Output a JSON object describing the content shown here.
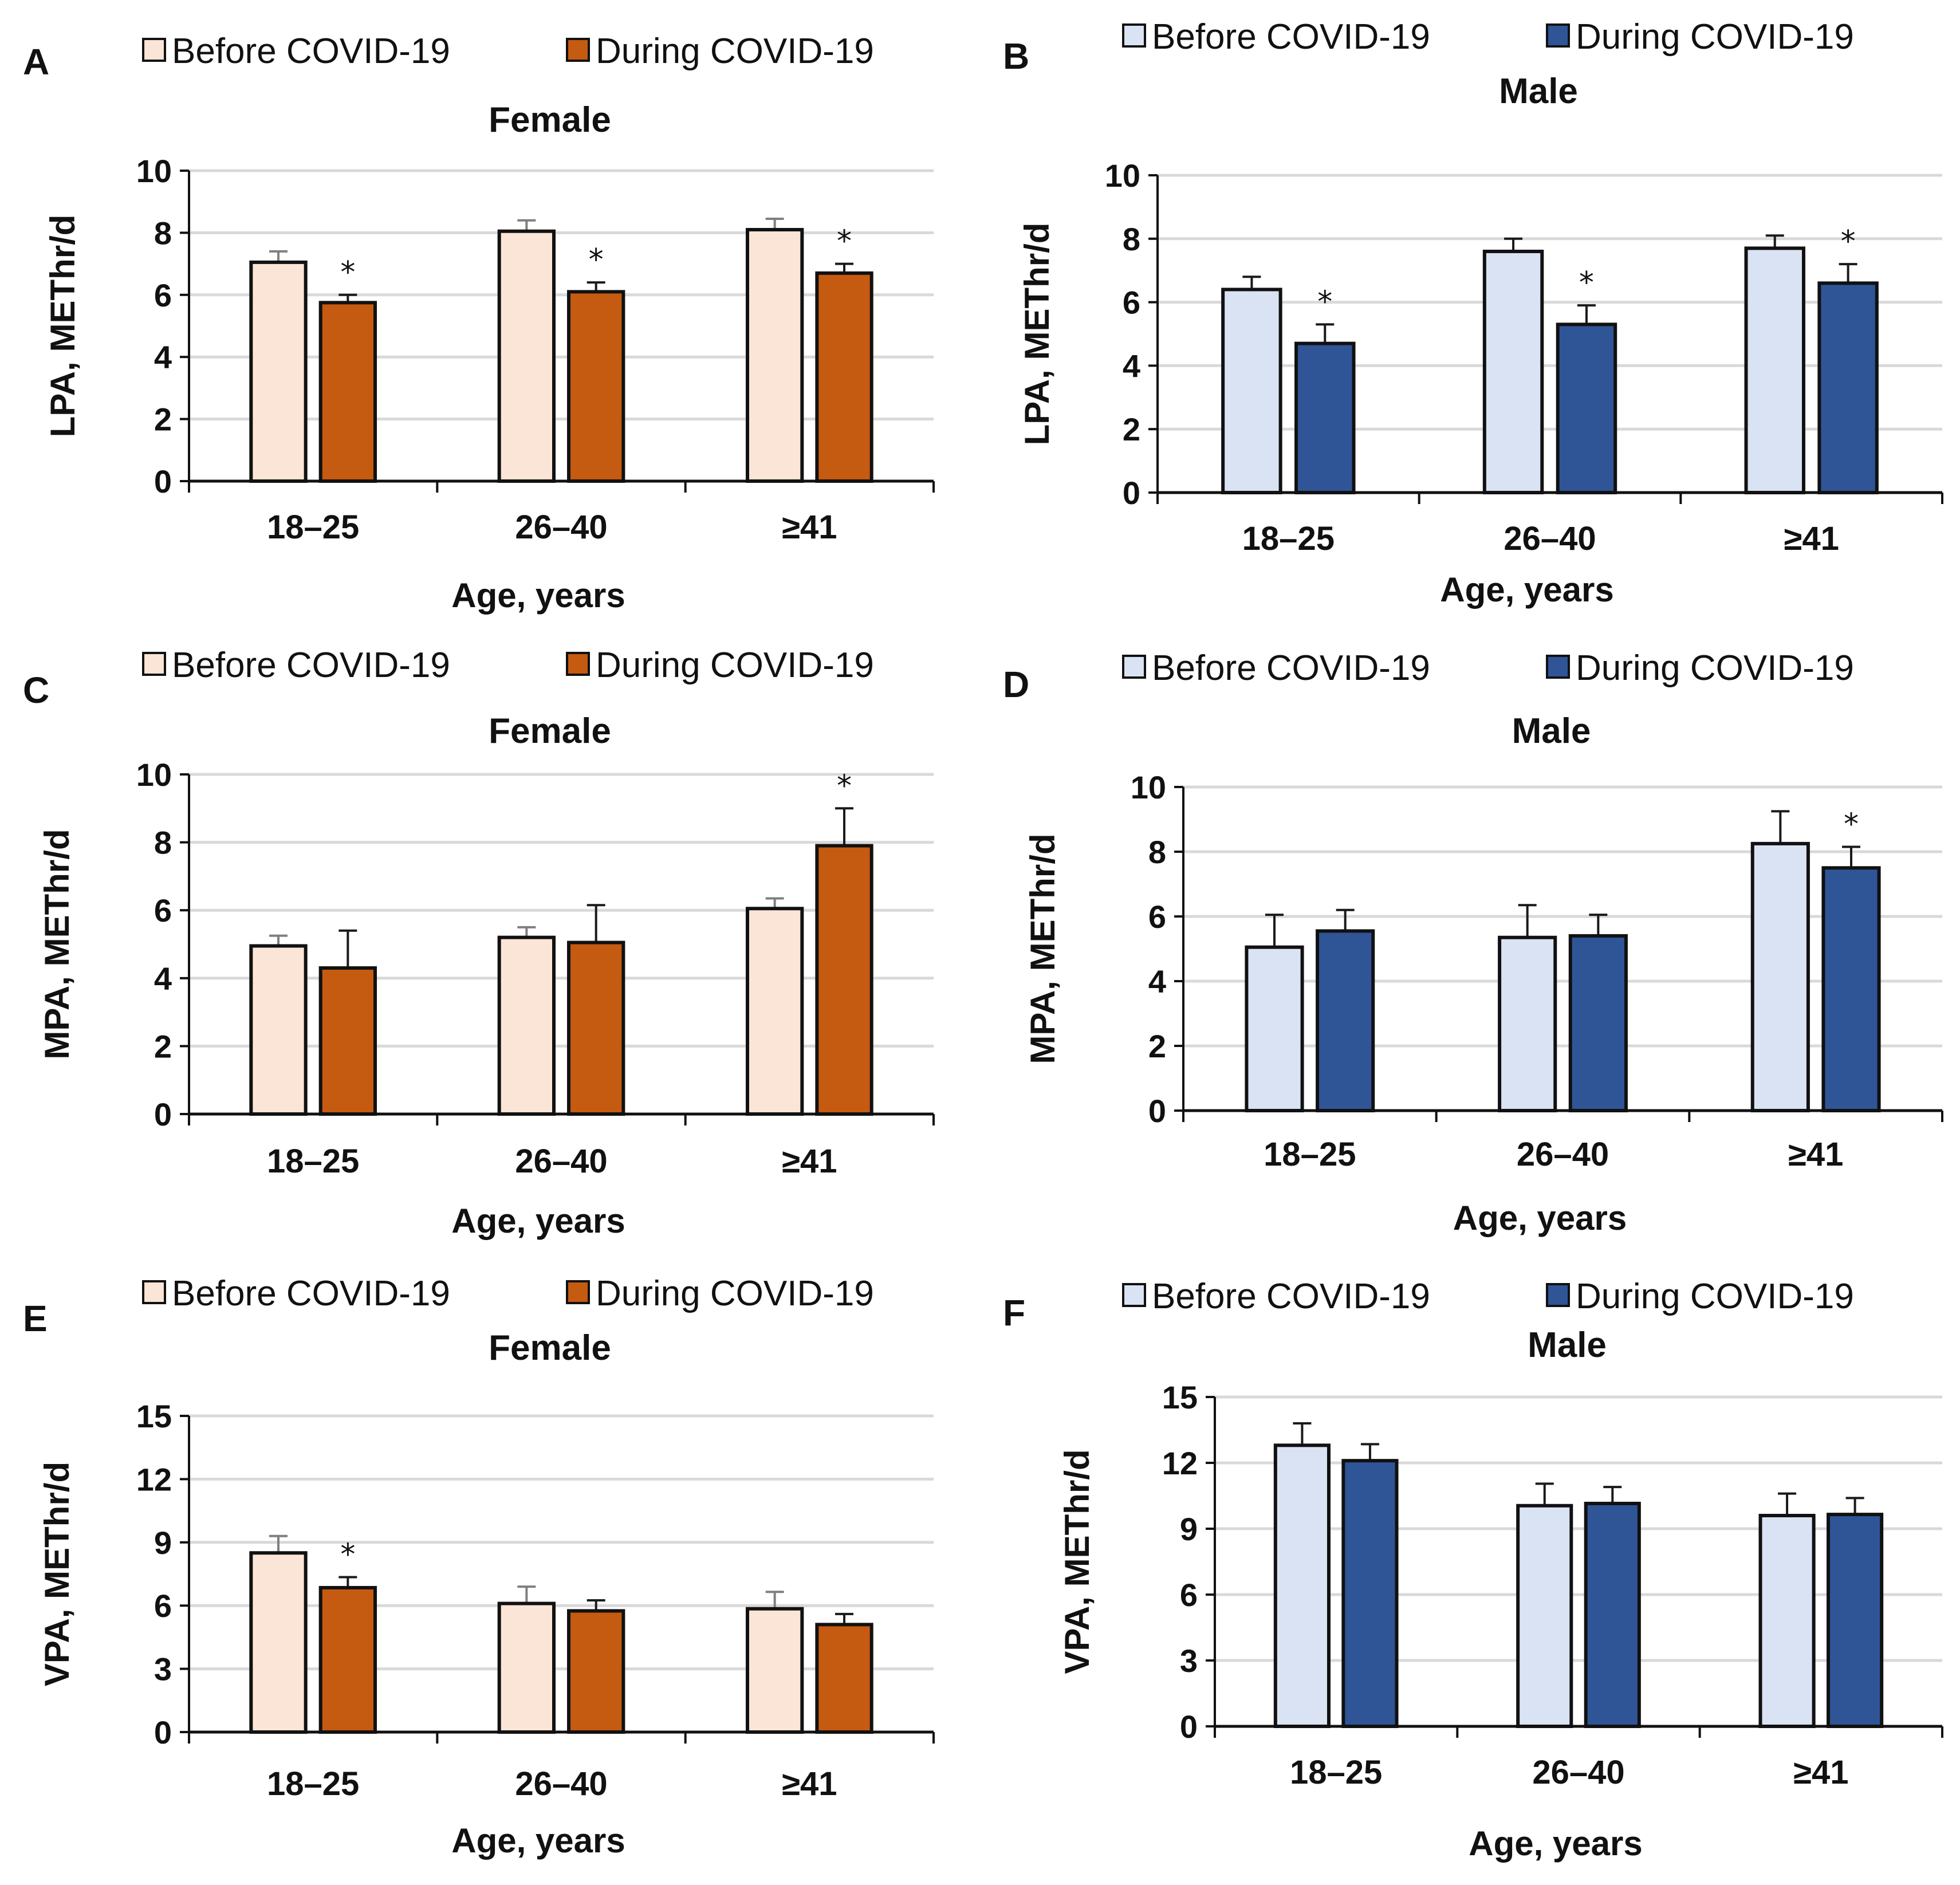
{
  "figure": {
    "legend": {
      "before": "Before COVID-19",
      "during": "During COVID-19"
    },
    "colors": {
      "female_before": "#FBE5D6",
      "female_during": "#C55A11",
      "male_before": "#DAE3F3",
      "male_during": "#2F5597",
      "outline": "#111111",
      "gridline": "#D9D9D9",
      "error_female_before": "#7F7F7F",
      "error_other": "#1a1a1a"
    }
  },
  "chart_data": [
    {
      "panel": "A",
      "type": "bar",
      "title": "Female",
      "xlabel": "Age, years",
      "ylabel": "LPA, METhr/d",
      "categories": [
        "18–25",
        "26–40",
        "≥41"
      ],
      "ylim": [
        0,
        10
      ],
      "yticks": [
        0,
        2,
        4,
        6,
        8,
        10
      ],
      "grid": true,
      "legend": "top",
      "palette": "female",
      "series": [
        {
          "name": "Before COVID-19",
          "values": [
            7.05,
            8.05,
            8.1
          ],
          "errors": [
            0.35,
            0.35,
            0.35
          ],
          "significant": [
            false,
            false,
            false
          ]
        },
        {
          "name": "During COVID-19",
          "values": [
            5.75,
            6.1,
            6.7
          ],
          "errors": [
            0.25,
            0.3,
            0.3
          ],
          "significant": [
            true,
            true,
            true
          ]
        }
      ],
      "annotation": "*"
    },
    {
      "panel": "B",
      "type": "bar",
      "title": "Male",
      "xlabel": "Age, years",
      "ylabel": "LPA, METhr/d",
      "categories": [
        "18–25",
        "26–40",
        "≥41"
      ],
      "ylim": [
        0,
        10
      ],
      "yticks": [
        0,
        2,
        4,
        6,
        8,
        10
      ],
      "grid": true,
      "legend": "top",
      "palette": "male",
      "series": [
        {
          "name": "Before COVID-19",
          "values": [
            6.4,
            7.6,
            7.7
          ],
          "errors": [
            0.4,
            0.4,
            0.4
          ],
          "significant": [
            false,
            false,
            false
          ]
        },
        {
          "name": "During COVID-19",
          "values": [
            4.7,
            5.3,
            6.6
          ],
          "errors": [
            0.6,
            0.6,
            0.6
          ],
          "significant": [
            true,
            true,
            true
          ]
        }
      ],
      "annotation": "*"
    },
    {
      "panel": "C",
      "type": "bar",
      "title": "Female",
      "xlabel": "Age, years",
      "ylabel": "MPA, METhr/d",
      "categories": [
        "18–25",
        "26–40",
        "≥41"
      ],
      "ylim": [
        0,
        10
      ],
      "yticks": [
        0,
        2,
        4,
        6,
        8,
        10
      ],
      "grid": true,
      "legend": "top",
      "palette": "female",
      "series": [
        {
          "name": "Before COVID-19",
          "values": [
            4.95,
            5.2,
            6.05
          ],
          "errors": [
            0.3,
            0.3,
            0.3
          ],
          "significant": [
            false,
            false,
            false
          ]
        },
        {
          "name": "During COVID-19",
          "values": [
            4.3,
            5.05,
            7.9
          ],
          "errors": [
            1.1,
            1.1,
            1.1
          ],
          "significant": [
            false,
            false,
            true
          ]
        }
      ],
      "annotation": "*"
    },
    {
      "panel": "D",
      "type": "bar",
      "title": "Male",
      "xlabel": "Age, years",
      "ylabel": "MPA, METhr/d",
      "categories": [
        "18–25",
        "26–40",
        "≥41"
      ],
      "ylim": [
        0,
        10
      ],
      "yticks": [
        0,
        2,
        4,
        6,
        8,
        10
      ],
      "grid": true,
      "legend": "top",
      "palette": "male",
      "series": [
        {
          "name": "Before COVID-19",
          "values": [
            5.05,
            5.35,
            8.25
          ],
          "errors": [
            1.0,
            1.0,
            1.0
          ],
          "significant": [
            false,
            false,
            false
          ]
        },
        {
          "name": "During COVID-19",
          "values": [
            5.55,
            5.4,
            7.5
          ],
          "errors": [
            0.65,
            0.65,
            0.65
          ],
          "significant": [
            false,
            false,
            true
          ]
        }
      ],
      "annotation": "*"
    },
    {
      "panel": "E",
      "type": "bar",
      "title": "Female",
      "xlabel": "Age, years",
      "ylabel": "VPA, METhr/d",
      "categories": [
        "18–25",
        "26–40",
        "≥41"
      ],
      "ylim": [
        0,
        15
      ],
      "yticks": [
        0,
        3,
        6,
        9,
        12,
        15
      ],
      "grid": true,
      "legend": "top",
      "palette": "female",
      "series": [
        {
          "name": "Before COVID-19",
          "values": [
            8.5,
            6.1,
            5.85
          ],
          "errors": [
            0.8,
            0.8,
            0.8
          ],
          "significant": [
            false,
            false,
            false
          ]
        },
        {
          "name": "During COVID-19",
          "values": [
            6.85,
            5.75,
            5.1
          ],
          "errors": [
            0.5,
            0.5,
            0.5
          ],
          "significant": [
            true,
            false,
            false
          ]
        }
      ],
      "annotation": "*"
    },
    {
      "panel": "F",
      "type": "bar",
      "title": "Male",
      "xlabel": "Age, years",
      "ylabel": "VPA, METhr/d",
      "categories": [
        "18–25",
        "26–40",
        "≥41"
      ],
      "ylim": [
        0,
        15
      ],
      "yticks": [
        0,
        3,
        6,
        9,
        12,
        15
      ],
      "grid": true,
      "legend": "top",
      "palette": "male",
      "series": [
        {
          "name": "Before COVID-19",
          "values": [
            12.8,
            10.05,
            9.6
          ],
          "errors": [
            1.0,
            1.0,
            1.0
          ],
          "significant": [
            false,
            false,
            false
          ]
        },
        {
          "name": "During COVID-19",
          "values": [
            12.1,
            10.15,
            9.65
          ],
          "errors": [
            0.75,
            0.75,
            0.75
          ],
          "significant": [
            false,
            false,
            false
          ]
        }
      ],
      "annotation": "*"
    }
  ]
}
